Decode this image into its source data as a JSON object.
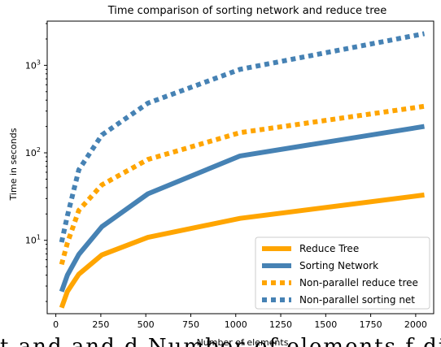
{
  "chart_data": {
    "type": "line",
    "title": "Time comparison of sorting network and reduce tree",
    "xlabel": "Number of elements",
    "ylabel": "Time in seconds",
    "xlim": [
      -48,
      2100
    ],
    "ylim": [
      1.45,
      3200
    ],
    "yscale": "log",
    "x_ticks": [
      0,
      250,
      500,
      750,
      1000,
      1250,
      1500,
      1750,
      2000
    ],
    "x_tick_labels": [
      "0",
      "250",
      "500",
      "750",
      "1000",
      "1250",
      "1500",
      "1750",
      "2000"
    ],
    "y_ticks": [
      10,
      100,
      1000
    ],
    "y_tick_labels": [
      "10",
      "10",
      "10"
    ],
    "y_tick_exponents": [
      "1",
      "2",
      "3"
    ],
    "grid": false,
    "legend_position": "lower-right",
    "series": [
      {
        "name": "Reduce Tree",
        "color": "#FFA500",
        "style": "solid",
        "x": [
          32,
          64,
          128,
          256,
          512,
          1024,
          2048
        ],
        "values": [
          1.7,
          2.6,
          4.1,
          6.8,
          10.8,
          17.8,
          33
        ]
      },
      {
        "name": "Sorting Network",
        "color": "#4682B4",
        "style": "solid",
        "x": [
          32,
          64,
          128,
          256,
          512,
          1024,
          2048
        ],
        "values": [
          2.6,
          4.0,
          6.9,
          14.3,
          34,
          92,
          200
        ]
      },
      {
        "name": "Non-parallel reduce tree",
        "color": "#FFA500",
        "style": "dotted",
        "x": [
          32,
          64,
          128,
          256,
          512,
          1024,
          2048
        ],
        "values": [
          5.3,
          9.3,
          22,
          43,
          84,
          170,
          340
        ]
      },
      {
        "name": "Non-parallel sorting net",
        "color": "#4682B4",
        "style": "dotted",
        "x": [
          32,
          64,
          128,
          256,
          512,
          1024,
          2048
        ],
        "values": [
          9.5,
          19,
          64,
          160,
          370,
          900,
          2300
        ]
      }
    ]
  },
  "caption_fragment": "t  and  and  d  Number of elements  f  diff"
}
